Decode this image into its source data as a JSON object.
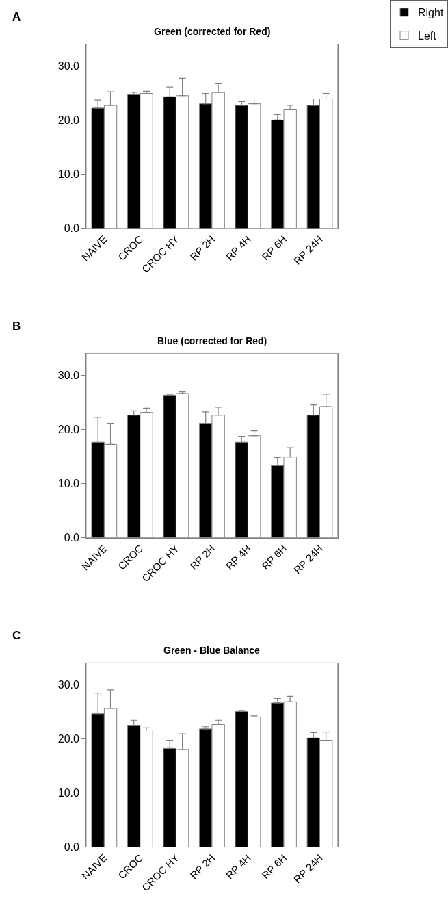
{
  "chart_data": [
    {
      "type": "bar",
      "title": "Green (corrected for Red)",
      "annotations": [
        "A"
      ],
      "categories": [
        "NAIVE",
        "CROC",
        "CROC HY",
        "RP 2H",
        "RP 4H",
        "RP 6H",
        "RP 24H"
      ],
      "legend": "top right",
      "grid": false,
      "ylim": [
        0,
        34
      ],
      "yticks": [
        {
          "value": 0,
          "label": "0.0"
        },
        {
          "value": 10,
          "label": "10.0"
        },
        {
          "value": 20,
          "label": "20.0"
        },
        {
          "value": 30,
          "label": "30.0"
        }
      ],
      "series": [
        {
          "name": "Right",
          "color": "#000000",
          "values": [
            22.2,
            24.7,
            24.3,
            23.0,
            22.7,
            20.0,
            22.7
          ],
          "errors": [
            [
              22.2,
              23.7
            ],
            [
              24.7,
              25.1
            ],
            [
              24.3,
              26.1
            ],
            [
              23.0,
              24.9
            ],
            [
              22.7,
              23.4
            ],
            [
              20.0,
              21.0
            ],
            [
              22.7,
              23.9
            ]
          ]
        },
        {
          "name": "Left",
          "color": "#ffffff",
          "values": [
            22.7,
            24.9,
            24.5,
            25.1,
            23.0,
            22.0,
            23.9
          ],
          "errors": [
            [
              22.7,
              25.2
            ],
            [
              24.9,
              25.3
            ],
            [
              24.5,
              27.7
            ],
            [
              25.1,
              26.7
            ],
            [
              23.0,
              23.9
            ],
            [
              22.0,
              22.7
            ],
            [
              23.9,
              24.9
            ]
          ]
        }
      ]
    },
    {
      "type": "bar",
      "title": "Blue (corrected for Red)",
      "annotations": [
        "B"
      ],
      "categories": [
        "NAIVE",
        "CROC",
        "CROC HY",
        "RP 2H",
        "RP 4H",
        "RP 6H",
        "RP 24H"
      ],
      "grid": false,
      "ylim": [
        0,
        34
      ],
      "yticks": [
        {
          "value": 0,
          "label": "0.0"
        },
        {
          "value": 10,
          "label": "10.0"
        },
        {
          "value": 20,
          "label": "20.0"
        },
        {
          "value": 30,
          "label": "30.0"
        }
      ],
      "series": [
        {
          "color": "#000000",
          "values": [
            17.6,
            22.6,
            26.3,
            21.1,
            17.6,
            13.3,
            22.6
          ],
          "errors": [
            [
              17.6,
              22.2
            ],
            [
              22.6,
              23.4
            ],
            [
              26.3,
              26.5
            ],
            [
              21.1,
              23.2
            ],
            [
              17.6,
              18.7
            ],
            [
              13.3,
              14.8
            ],
            [
              22.6,
              24.5
            ]
          ]
        },
        {
          "color": "#ffffff",
          "values": [
            17.2,
            23.1,
            26.6,
            22.6,
            18.8,
            14.9,
            24.2
          ],
          "errors": [
            [
              17.2,
              21.1
            ],
            [
              23.1,
              23.9
            ],
            [
              26.6,
              26.9
            ],
            [
              22.6,
              24.1
            ],
            [
              18.8,
              19.7
            ],
            [
              14.9,
              16.6
            ],
            [
              24.2,
              26.5
            ]
          ]
        }
      ]
    },
    {
      "type": "bar",
      "title": "Green - Blue Balance",
      "annotations": [
        "C"
      ],
      "categories": [
        "NAIVE",
        "CROC",
        "CROC HY",
        "RP 2H",
        "RP 4H",
        "RP 6H",
        "RP 24H"
      ],
      "grid": false,
      "ylim": [
        0,
        34
      ],
      "yticks": [
        {
          "value": 0,
          "label": "0.0"
        },
        {
          "value": 10,
          "label": "10.0"
        },
        {
          "value": 20,
          "label": "20.0"
        },
        {
          "value": 30,
          "label": "30.0"
        }
      ],
      "series": [
        {
          "color": "#000000",
          "values": [
            24.6,
            22.4,
            18.2,
            21.8,
            25.0,
            26.6,
            20.1
          ],
          "errors": [
            [
              24.6,
              28.4
            ],
            [
              22.4,
              23.4
            ],
            [
              18.2,
              19.7
            ],
            [
              21.8,
              22.2
            ],
            [
              25.0,
              25.1
            ],
            [
              26.6,
              27.4
            ],
            [
              20.1,
              21.1
            ]
          ]
        },
        {
          "color": "#ffffff",
          "values": [
            25.6,
            21.6,
            18.0,
            22.6,
            24.0,
            26.8,
            19.7
          ],
          "errors": [
            [
              25.6,
              29.0
            ],
            [
              21.6,
              22.0
            ],
            [
              18.0,
              20.9
            ],
            [
              22.6,
              23.4
            ],
            [
              24.0,
              24.2
            ],
            [
              26.8,
              27.8
            ],
            [
              19.7,
              21.2
            ]
          ]
        }
      ]
    }
  ]
}
